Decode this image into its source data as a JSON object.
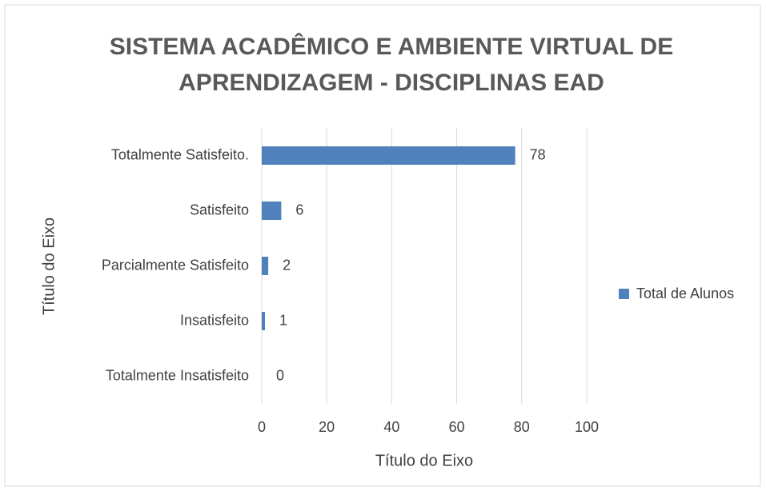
{
  "chart_data": {
    "type": "bar",
    "orientation": "horizontal",
    "title": "SISTEMA ACADÊMICO E AMBIENTE VIRTUAL DE APRENDIZAGEM - DISCIPLINAS EAD",
    "x_label": "Título do Eixo",
    "y_label": "Título do Eixo",
    "categories": [
      "Totalmente Satisfeito.",
      "Satisfeito",
      "Parcialmente Satisfeito",
      "Insatisfeito",
      "Totalmente Insatisfeito"
    ],
    "series": [
      {
        "name": "Total de Alunos",
        "color": "#4f81bd",
        "values": [
          78,
          6,
          2,
          1,
          0
        ]
      }
    ],
    "xlim": [
      0,
      100
    ],
    "xticks": [
      0,
      20,
      40,
      60,
      80,
      100
    ],
    "grid": true,
    "legend": "right"
  }
}
